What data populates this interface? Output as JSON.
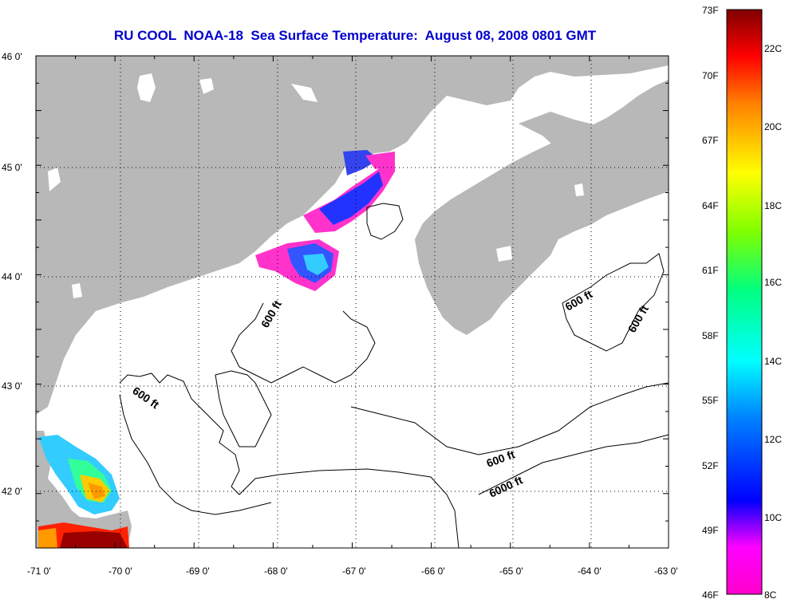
{
  "title": "RU COOL  NOAA-18  Sea Surface Temperature:  August 08, 2008 0801 GMT",
  "map": {
    "lon_labels": [
      "-71 0'",
      "-70 0'",
      "-69 0'",
      "-68 0'",
      "-67 0'",
      "-66 0'",
      "-65 0'",
      "-64 0'",
      "-63 0'"
    ],
    "lat_labels": [
      "46 0'",
      "45 0'",
      "44 0'",
      "43 0'",
      "42 0'"
    ],
    "land_color": "#b8b8b8",
    "water_color": "#ffffff",
    "grid": "dotted",
    "contour_labels": [
      "600 ft",
      "600 ft",
      "600 ft",
      "600 ft",
      "600 ft",
      "6000 ft"
    ]
  },
  "colorbar": {
    "fahrenheit_labels": [
      "73F",
      "70F",
      "67F",
      "64F",
      "61F",
      "58F",
      "55F",
      "52F",
      "49F",
      "46F"
    ],
    "celsius_labels": [
      "22C",
      "20C",
      "18C",
      "16C",
      "14C",
      "12C",
      "10C",
      "8C"
    ],
    "colors": [
      "#ff00cc",
      "#7f00ff",
      "#0000ff",
      "#0080ff",
      "#00ffff",
      "#00ff80",
      "#80ff00",
      "#ffff00",
      "#ff8000",
      "#ff0000",
      "#800000"
    ]
  }
}
